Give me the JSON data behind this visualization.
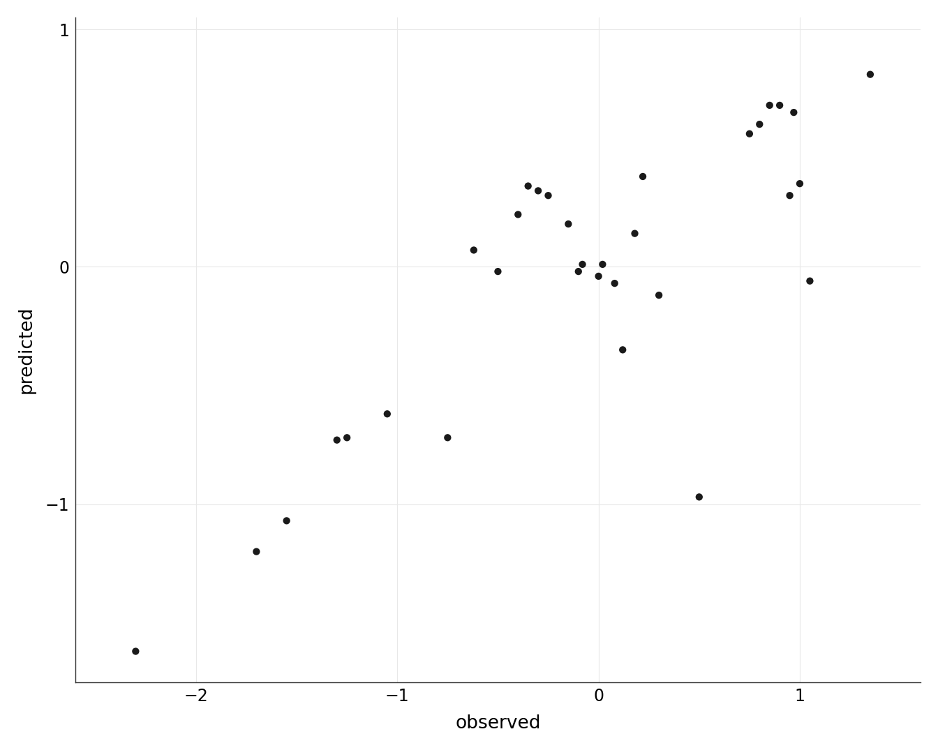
{
  "x": [
    -2.3,
    -1.7,
    -1.55,
    -1.3,
    -1.25,
    -1.05,
    -0.75,
    -0.62,
    -0.5,
    -0.4,
    -0.35,
    -0.3,
    -0.25,
    -0.15,
    -0.1,
    -0.08,
    0.0,
    0.02,
    0.08,
    0.12,
    0.18,
    0.22,
    0.3,
    0.5,
    0.75,
    0.8,
    0.85,
    0.9,
    0.95,
    0.97,
    1.0,
    1.05,
    1.35
  ],
  "y": [
    -1.62,
    -1.2,
    -1.07,
    -0.73,
    -0.72,
    -0.62,
    -0.72,
    0.07,
    -0.02,
    0.22,
    0.34,
    0.32,
    0.3,
    0.18,
    -0.02,
    0.01,
    -0.04,
    0.01,
    -0.07,
    -0.35,
    0.14,
    0.38,
    -0.12,
    -0.97,
    0.56,
    0.6,
    0.68,
    0.68,
    0.3,
    0.65,
    0.35,
    -0.06,
    0.81
  ],
  "xlabel": "observed",
  "ylabel": "predicted",
  "xlim": [
    -2.6,
    1.6
  ],
  "ylim": [
    -1.75,
    1.05
  ],
  "xticks": [
    -2,
    -1,
    0,
    1
  ],
  "yticks": [
    -1,
    0,
    1
  ],
  "grid_color": "#e8e8e8",
  "point_color": "#1a1a1a",
  "point_size": 55,
  "bg_color": "#ffffff",
  "panel_bg": "#ffffff",
  "font_family": "DejaVu Sans"
}
